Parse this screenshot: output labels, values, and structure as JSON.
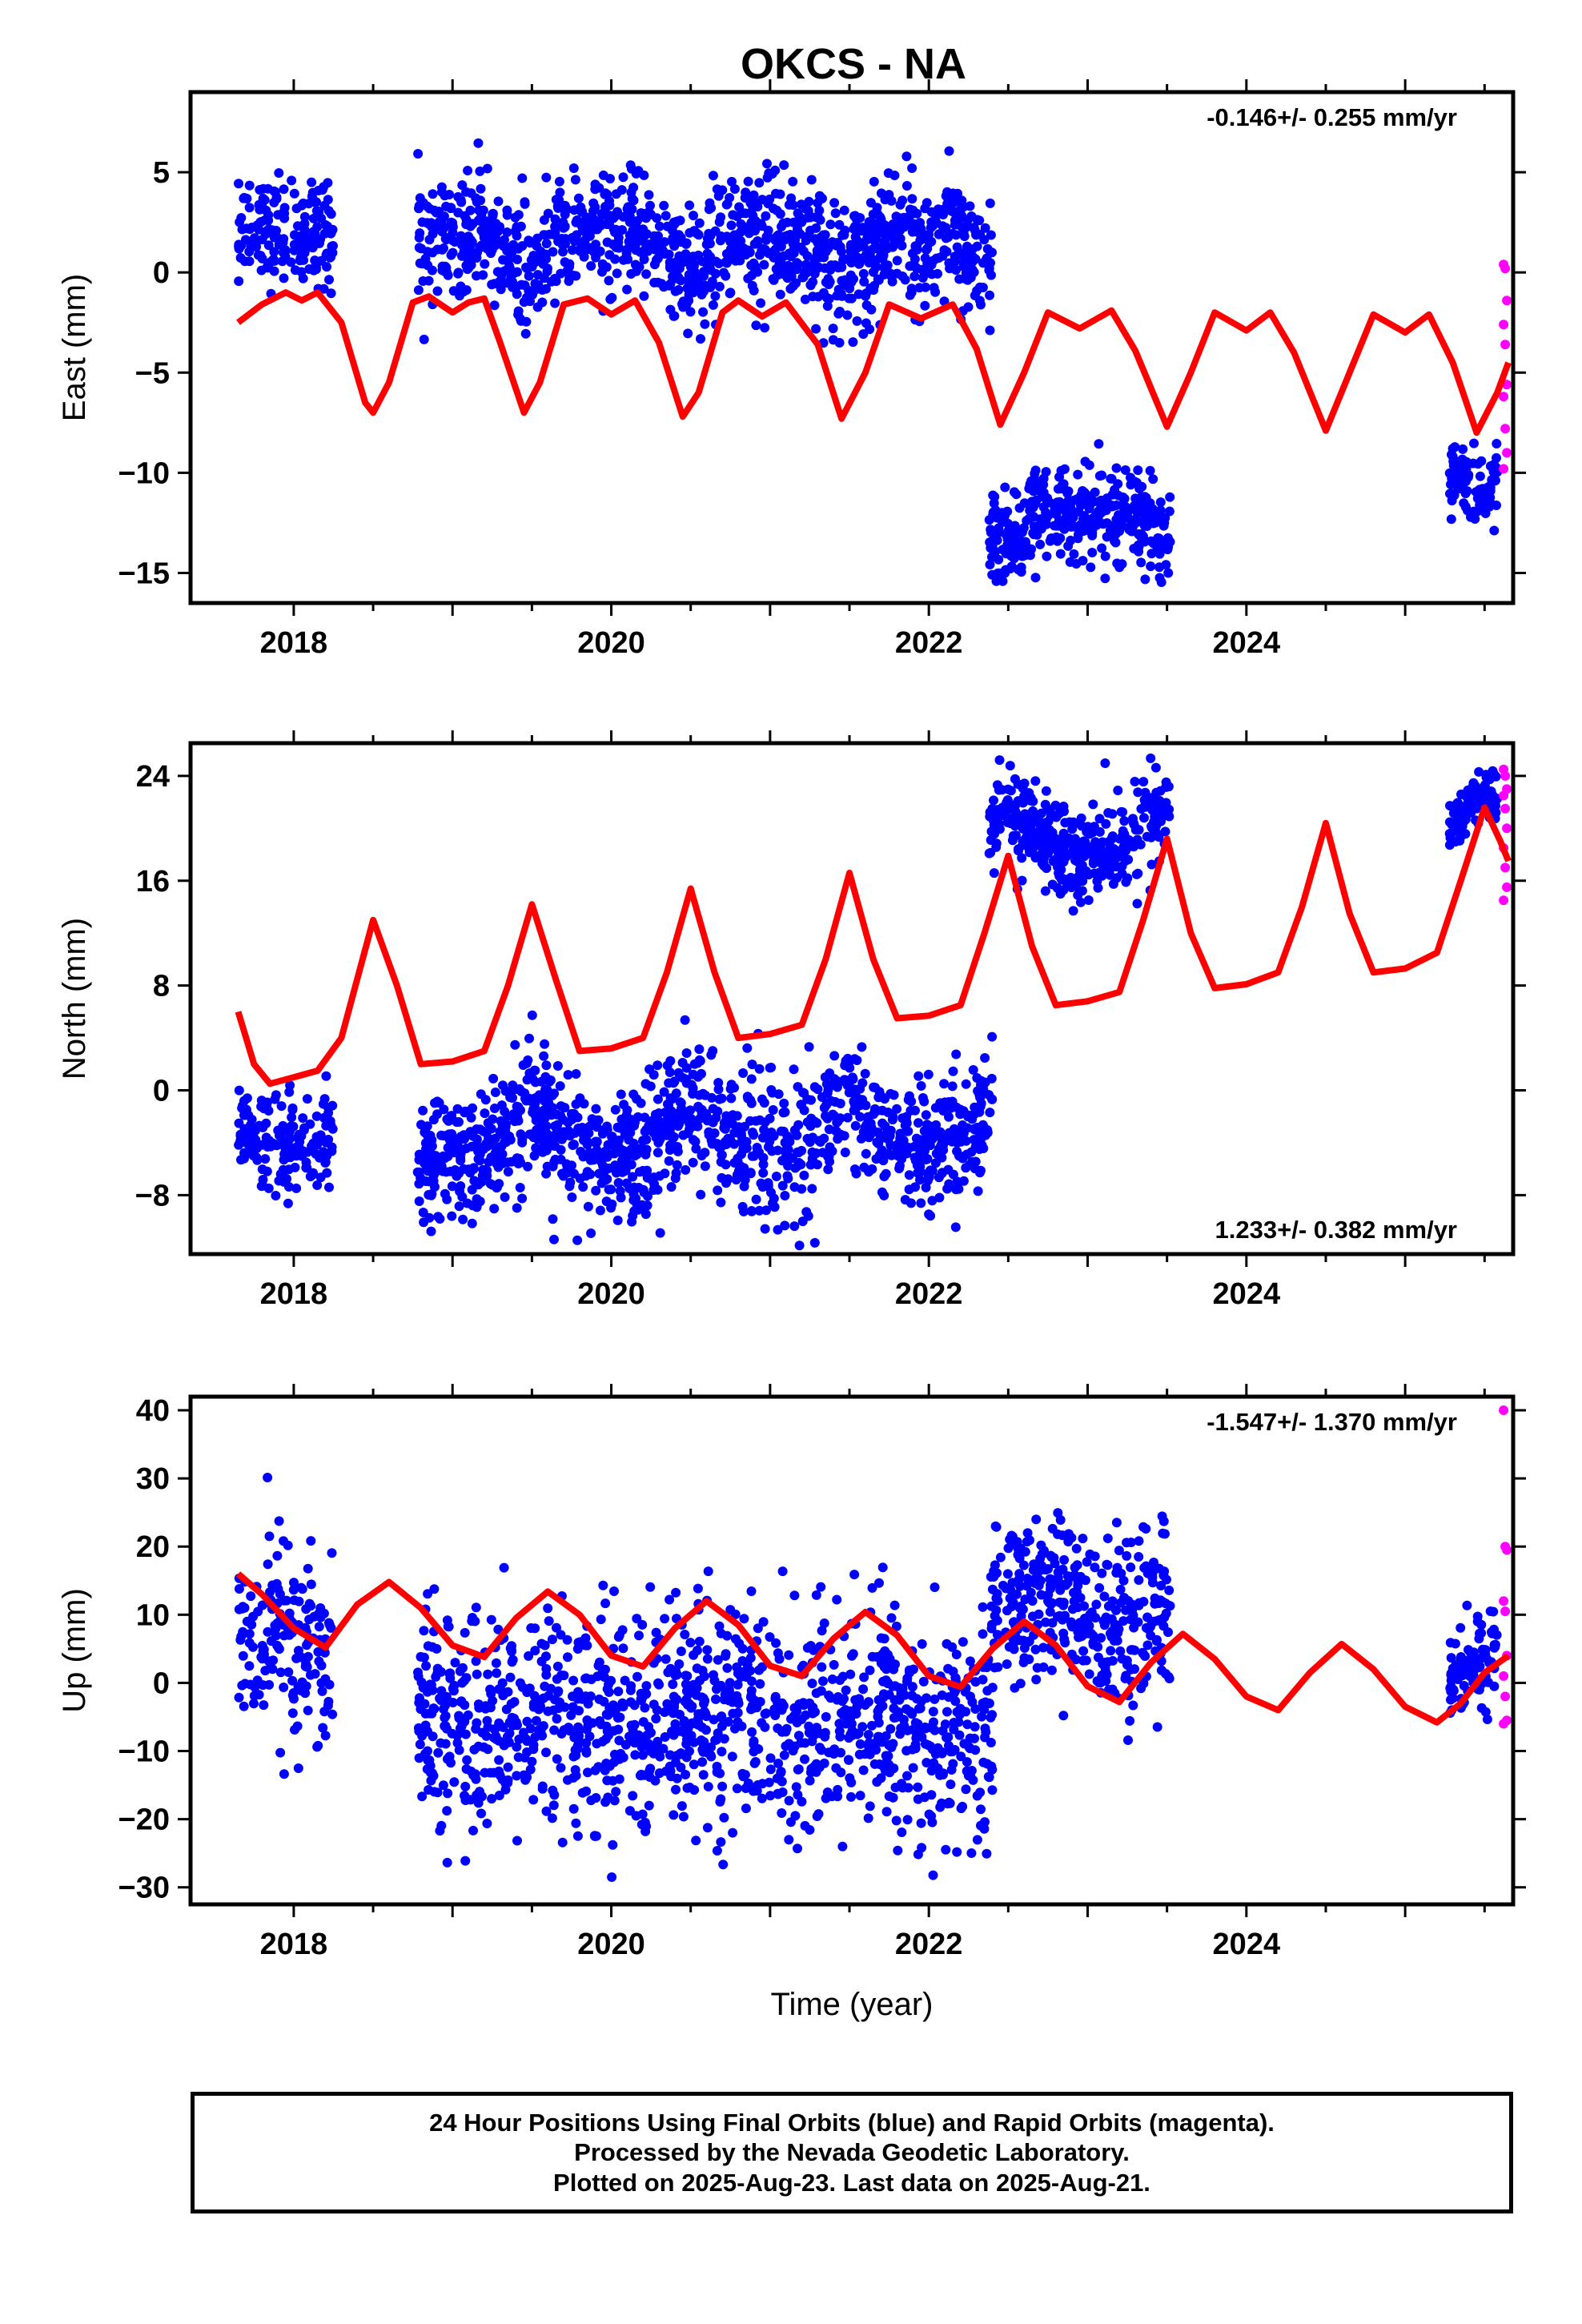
{
  "title": "OKCS - NA",
  "colors": {
    "final": "#0000ff",
    "rapid": "#ff00ff",
    "model": "#ff0000",
    "frame": "#000000"
  },
  "caption": {
    "line1": "24 Hour Positions Using Final Orbits (blue) and Rapid Orbits (magenta).",
    "line2": "Processed by the Nevada Geodetic Laboratory.",
    "line3": "Plotted on 2025-Aug-23. Last data on 2025-Aug-21."
  },
  "chart_data": [
    {
      "type": "scatter",
      "ylabel": "East (mm)",
      "rate": "-0.146+/- 0.255 mm/yr",
      "rate_position": "top-right",
      "xlim": [
        2017.35,
        2025.68
      ],
      "ylim": [
        -16.5,
        9.0
      ],
      "xticks": [
        2018,
        2020,
        2022,
        2024
      ],
      "yticks": [
        5,
        0,
        -5,
        -10,
        -15
      ],
      "ytick_labels": [
        "5",
        "0",
        "−5",
        "−10",
        "−15"
      ],
      "segments": [
        {
          "start": 2017.65,
          "end": 2018.25,
          "center": 2.2,
          "spread": 1.3,
          "count": 170
        },
        {
          "start": 2018.78,
          "end": 2022.4,
          "center": 0.6,
          "spread": 1.5,
          "count": 1200
        },
        {
          "start": 2022.38,
          "end": 2023.52,
          "center": -12.0,
          "spread": 1.2,
          "count": 380
        },
        {
          "start": 2025.28,
          "end": 2025.58,
          "center": -11.0,
          "spread": 1.0,
          "count": 90
        }
      ],
      "rapid": [
        0.4,
        0.2,
        -1.4,
        -2.6,
        -3.6,
        -5.6,
        -6.2,
        -7.8,
        -9.0,
        -9.8
      ],
      "model": [
        [
          2017.65,
          -2.5
        ],
        [
          2017.8,
          -1.6
        ],
        [
          2017.95,
          -1.0
        ],
        [
          2018.05,
          -1.4
        ],
        [
          2018.15,
          -1.0
        ],
        [
          2018.3,
          -2.5
        ],
        [
          2018.45,
          -6.5
        ],
        [
          2018.5,
          -7.0
        ],
        [
          2018.6,
          -5.5
        ],
        [
          2018.75,
          -1.5
        ],
        [
          2018.85,
          -1.2
        ],
        [
          2019.0,
          -2.0
        ],
        [
          2019.1,
          -1.5
        ],
        [
          2019.2,
          -1.3
        ],
        [
          2019.3,
          -3.5
        ],
        [
          2019.45,
          -7.0
        ],
        [
          2019.55,
          -5.5
        ],
        [
          2019.7,
          -1.6
        ],
        [
          2019.85,
          -1.3
        ],
        [
          2020.0,
          -2.1
        ],
        [
          2020.15,
          -1.4
        ],
        [
          2020.3,
          -3.5
        ],
        [
          2020.45,
          -7.2
        ],
        [
          2020.55,
          -6.0
        ],
        [
          2020.7,
          -2.0
        ],
        [
          2020.8,
          -1.4
        ],
        [
          2020.95,
          -2.2
        ],
        [
          2021.1,
          -1.5
        ],
        [
          2021.3,
          -3.6
        ],
        [
          2021.45,
          -7.3
        ],
        [
          2021.6,
          -5.0
        ],
        [
          2021.75,
          -1.6
        ],
        [
          2021.95,
          -2.3
        ],
        [
          2022.15,
          -1.6
        ],
        [
          2022.3,
          -3.8
        ],
        [
          2022.45,
          -7.6
        ],
        [
          2022.6,
          -5.0
        ],
        [
          2022.75,
          -2.0
        ],
        [
          2022.95,
          -2.8
        ],
        [
          2023.15,
          -1.9
        ],
        [
          2023.3,
          -3.9
        ],
        [
          2023.5,
          -7.7
        ],
        [
          2023.65,
          -5.0
        ],
        [
          2023.8,
          -2.0
        ],
        [
          2024.0,
          -2.9
        ],
        [
          2024.15,
          -2.0
        ],
        [
          2024.3,
          -4.0
        ],
        [
          2024.5,
          -7.9
        ],
        [
          2024.65,
          -5.0
        ],
        [
          2024.8,
          -2.1
        ],
        [
          2025.0,
          -3.0
        ],
        [
          2025.15,
          -2.1
        ],
        [
          2025.3,
          -4.5
        ],
        [
          2025.45,
          -8.0
        ],
        [
          2025.58,
          -6.0
        ],
        [
          2025.65,
          -4.5
        ]
      ]
    },
    {
      "type": "scatter",
      "ylabel": "North (mm)",
      "rate": "1.233+/- 0.382 mm/yr",
      "rate_position": "bottom-right",
      "xlim": [
        2017.35,
        2025.68
      ],
      "ylim": [
        -12.5,
        26.5
      ],
      "xticks": [
        2018,
        2020,
        2022,
        2024
      ],
      "yticks": [
        24,
        16,
        8,
        0,
        -8
      ],
      "ytick_labels": [
        "24",
        "16",
        "8",
        "0",
        "−8"
      ],
      "segments": [
        {
          "start": 2017.65,
          "end": 2018.25,
          "center": -4.5,
          "spread": 2.0,
          "count": 170
        },
        {
          "start": 2018.78,
          "end": 2022.4,
          "center": -2.0,
          "spread": 2.5,
          "count": 1200
        },
        {
          "start": 2022.38,
          "end": 2023.52,
          "center": 18.0,
          "spread": 1.8,
          "count": 380
        },
        {
          "start": 2025.28,
          "end": 2025.58,
          "center": 22.0,
          "spread": 1.0,
          "count": 90
        }
      ],
      "rapid": [
        24.5,
        24.0,
        23.0,
        22.5,
        21.5,
        20.0,
        18.5,
        17.0,
        15.5,
        14.5
      ],
      "model": [
        [
          2017.65,
          6.0
        ],
        [
          2017.75,
          2.0
        ],
        [
          2017.85,
          0.5
        ],
        [
          2018.0,
          1.0
        ],
        [
          2018.15,
          1.5
        ],
        [
          2018.3,
          4.0
        ],
        [
          2018.5,
          13.0
        ],
        [
          2018.65,
          8.0
        ],
        [
          2018.8,
          2.0
        ],
        [
          2019.0,
          2.2
        ],
        [
          2019.2,
          3.0
        ],
        [
          2019.35,
          8.0
        ],
        [
          2019.5,
          14.2
        ],
        [
          2019.65,
          8.5
        ],
        [
          2019.8,
          3.0
        ],
        [
          2020.0,
          3.2
        ],
        [
          2020.2,
          4.0
        ],
        [
          2020.35,
          9.0
        ],
        [
          2020.5,
          15.4
        ],
        [
          2020.65,
          9.0
        ],
        [
          2020.8,
          4.0
        ],
        [
          2021.0,
          4.3
        ],
        [
          2021.2,
          5.0
        ],
        [
          2021.35,
          10.0
        ],
        [
          2021.5,
          16.6
        ],
        [
          2021.65,
          10.0
        ],
        [
          2021.8,
          5.5
        ],
        [
          2022.0,
          5.7
        ],
        [
          2022.2,
          6.5
        ],
        [
          2022.35,
          12.0
        ],
        [
          2022.5,
          17.9
        ],
        [
          2022.65,
          11.0
        ],
        [
          2022.8,
          6.5
        ],
        [
          2023.0,
          6.8
        ],
        [
          2023.2,
          7.5
        ],
        [
          2023.35,
          13.0
        ],
        [
          2023.5,
          19.2
        ],
        [
          2023.65,
          12.0
        ],
        [
          2023.8,
          7.8
        ],
        [
          2024.0,
          8.1
        ],
        [
          2024.2,
          9.0
        ],
        [
          2024.35,
          14.0
        ],
        [
          2024.5,
          20.4
        ],
        [
          2024.65,
          13.5
        ],
        [
          2024.8,
          9.0
        ],
        [
          2025.0,
          9.3
        ],
        [
          2025.2,
          10.5
        ],
        [
          2025.35,
          16.0
        ],
        [
          2025.5,
          21.6
        ],
        [
          2025.6,
          19.0
        ],
        [
          2025.65,
          17.5
        ]
      ]
    },
    {
      "type": "scatter",
      "ylabel": "Up (mm)",
      "xlabel": "Time (year)",
      "rate": "-1.547+/- 1.370 mm/yr",
      "rate_position": "top-right",
      "xlim": [
        2017.35,
        2025.68
      ],
      "ylim": [
        -32.5,
        42.0
      ],
      "xticks": [
        2018,
        2020,
        2022,
        2024
      ],
      "yticks": [
        40,
        30,
        20,
        10,
        0,
        -10,
        -20,
        -30
      ],
      "ytick_labels": [
        "40",
        "30",
        "20",
        "10",
        "0",
        "−10",
        "−20",
        "−30"
      ],
      "segments": [
        {
          "start": 2017.65,
          "end": 2018.25,
          "center": 6.0,
          "spread": 7.0,
          "count": 170
        },
        {
          "start": 2018.78,
          "end": 2022.4,
          "center": -4.0,
          "spread": 8.0,
          "count": 1200
        },
        {
          "start": 2022.38,
          "end": 2023.52,
          "center": 10.0,
          "spread": 6.0,
          "count": 380
        },
        {
          "start": 2025.28,
          "end": 2025.58,
          "center": 2.0,
          "spread": 3.5,
          "count": 90
        }
      ],
      "rapid": [
        40.0,
        20.0,
        19.5,
        12.0,
        10.5,
        4.0,
        1.0,
        -2.0,
        -5.5,
        -6.0
      ],
      "model": [
        [
          2017.65,
          16.0
        ],
        [
          2017.8,
          13.0
        ],
        [
          2018.0,
          8.0
        ],
        [
          2018.2,
          5.2
        ],
        [
          2018.4,
          11.5
        ],
        [
          2018.6,
          14.8
        ],
        [
          2018.8,
          11.0
        ],
        [
          2019.0,
          5.5
        ],
        [
          2019.2,
          3.8
        ],
        [
          2019.4,
          9.5
        ],
        [
          2019.6,
          13.4
        ],
        [
          2019.8,
          10.0
        ],
        [
          2020.0,
          4.0
        ],
        [
          2020.2,
          2.4
        ],
        [
          2020.4,
          8.0
        ],
        [
          2020.6,
          12.0
        ],
        [
          2020.8,
          8.5
        ],
        [
          2021.0,
          2.5
        ],
        [
          2021.2,
          1.0
        ],
        [
          2021.4,
          6.5
        ],
        [
          2021.6,
          10.4
        ],
        [
          2021.8,
          7.0
        ],
        [
          2022.0,
          1.0
        ],
        [
          2022.2,
          -0.6
        ],
        [
          2022.4,
          5.0
        ],
        [
          2022.6,
          9.0
        ],
        [
          2022.8,
          5.5
        ],
        [
          2023.0,
          -0.5
        ],
        [
          2023.2,
          -2.8
        ],
        [
          2023.4,
          3.0
        ],
        [
          2023.6,
          7.2
        ],
        [
          2023.8,
          3.5
        ],
        [
          2024.0,
          -2.0
        ],
        [
          2024.2,
          -4.0
        ],
        [
          2024.4,
          1.5
        ],
        [
          2024.6,
          5.7
        ],
        [
          2024.8,
          2.0
        ],
        [
          2025.0,
          -3.5
        ],
        [
          2025.2,
          -5.8
        ],
        [
          2025.35,
          -3.0
        ],
        [
          2025.5,
          1.5
        ],
        [
          2025.65,
          4.0
        ]
      ]
    }
  ]
}
